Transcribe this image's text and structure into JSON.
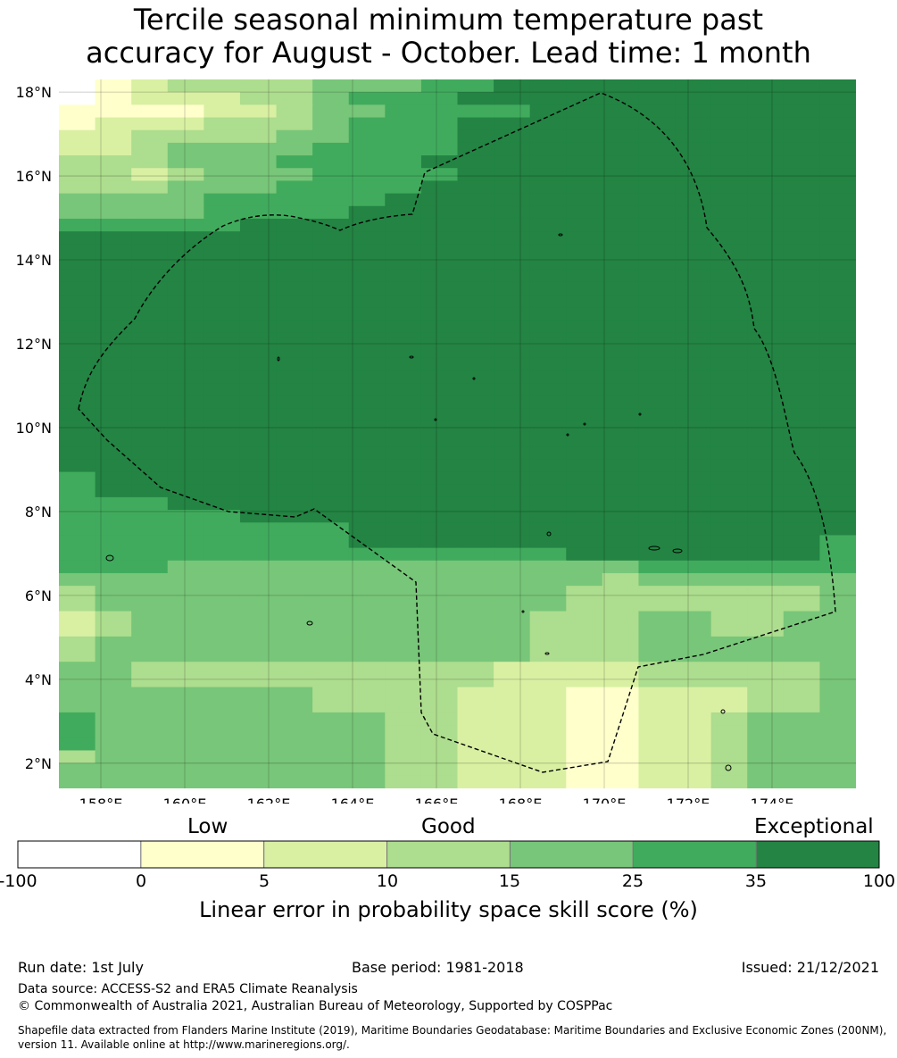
{
  "title": {
    "line1": "Tercile seasonal minimum temperature past",
    "line2": "accuracy for August - October. Lead time: 1 month"
  },
  "map": {
    "lon_range": [
      157,
      176
    ],
    "lat_range": [
      1.4,
      18.3
    ],
    "lon_ticks": [
      "158°E",
      "160°E",
      "162°E",
      "164°E",
      "166°E",
      "168°E",
      "170°E",
      "172°E",
      "174°E"
    ],
    "lat_ticks": [
      "18°N",
      "16°N",
      "14°N",
      "12°N",
      "10°N",
      "8°N",
      "6°N",
      "4°N",
      "2°N"
    ],
    "grid_rows_north_to_south": [
      "0123333444556666666666",
      "0122233455566666666666",
      "1111223445555666666666",
      "1222333455566666666666",
      "2233334455566666666666",
      "2234444555566666666666",
      "3334445555666666666666",
      "3323444555566666666666",
      "3334445555666666666666",
      "4444555556666666666666",
      "4444555566666666666666",
      "5555566666666666666666",
      "6666666666666666666666",
      "6666666666666666666666",
      "6666666666666666666666",
      "6666666666666666666666",
      "6666666666666666666666",
      "6666666666666666666666",
      "6666666666666666666666",
      "6666666666666666666666",
      "6666666666666666666666",
      "6666666666666666666666",
      "6666666666666666666666",
      "6666666666666666666666",
      "6666666666666666666666",
      "6666666666666666666666",
      "6666666666666666666666",
      "6666666666666666666666",
      "6666666666666666666666",
      "6666666666666666666666",
      "6666666666666666666666",
      "5666666666666666666666",
      "5666666666666666666666",
      "5556666666666666666666",
      "5555566666666666666666",
      "5555555566666666666666",
      "5555555566666666666665",
      "5555555555555566666665",
      "5554444444444444555555",
      "4444444444444443444444",
      "3444444444444433333334",
      "3444444444444433333334",
      "2344444444444333443344",
      "2344444444444333443344",
      "3444444444444333444444",
      "3444444444444333444444",
      "4433333333332222333334",
      "4433333333332222333334",
      "4444444333322211222334",
      "4444444333322211222334",
      "5444444443322211223444",
      "5444444443322211223444",
      "5444444443322211223444",
      "3444444443322211223444",
      "4444444443322211223444",
      "4444444443322211223444"
    ],
    "legend_colors_hex": [
      "#ffffff",
      "#ffffcc",
      "#d9f0a3",
      "#addd8e",
      "#78c679",
      "#41ab5d",
      "#238443"
    ]
  },
  "colorbar": {
    "categories": [
      "Low",
      "Good",
      "Exceptional"
    ],
    "ticks": [
      "-100",
      "0",
      "5",
      "10",
      "15",
      "25",
      "35",
      "100"
    ],
    "colors": [
      "#ffffff",
      "#ffffcc",
      "#d9f0a3",
      "#addd8e",
      "#78c679",
      "#41ab5d",
      "#238443"
    ],
    "label": "Linear error in probability space skill score (%)"
  },
  "footer": {
    "run_date": "Run date: 1st July",
    "base_period": "Base period: 1981-2018",
    "issued": "Issued: 21/12/2021",
    "data_source": "Data source: ACCESS-S2 and ERA5 Climate Reanalysis",
    "copyright": "© Commonwealth of Australia 2021, Australian Bureau of Meteorology, Supported by COSPPac",
    "shapefile": "Shapefile data extracted from Flanders Marine Institute (2019), Maritime Boundaries Geodatabase: Maritime Boundaries and Exclusive Economic Zones (200NM), version 11. Available online at http://www.marineregions.org/."
  }
}
